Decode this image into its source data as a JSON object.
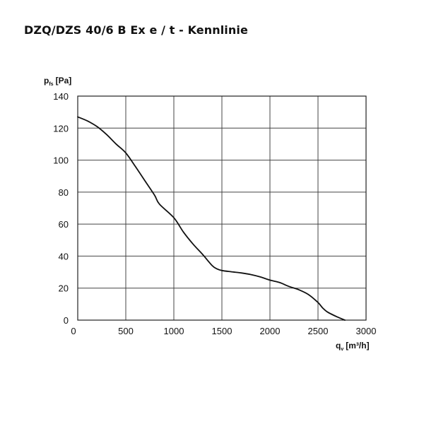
{
  "page": {
    "title": "DZQ/DZS 40/6 B Ex e / t - Kennlinie"
  },
  "chart_data": {
    "type": "line",
    "title": "DZQ/DZS 40/6 B Ex e / t - Kennlinie",
    "ylabel": {
      "main": "p",
      "sub": "fs",
      "unit": "[Pa]"
    },
    "xlabel": {
      "main": "q",
      "sub": "v",
      "unit": "[m³/h]"
    },
    "xlim": [
      0,
      3000
    ],
    "ylim": [
      0,
      140
    ],
    "x_ticks": [
      0,
      500,
      1000,
      1500,
      2000,
      2500,
      3000
    ],
    "y_ticks": [
      0,
      20,
      40,
      60,
      80,
      100,
      120,
      140
    ],
    "x_tick_labels": [
      "0",
      "500",
      "1000",
      "1500",
      "2000",
      "2500",
      "3000"
    ],
    "y_tick_labels": [
      "0",
      "20",
      "40",
      "60",
      "80",
      "100",
      "120",
      "140"
    ],
    "grid": true,
    "series": [
      {
        "x": [
          0,
          100,
          200,
          300,
          400,
          500,
          600,
          700,
          800,
          850,
          1000,
          1100,
          1200,
          1300,
          1400,
          1450,
          1500,
          1600,
          1700,
          1800,
          1900,
          2000,
          2100,
          2200,
          2300,
          2400,
          2500,
          2550,
          2600,
          2700,
          2780
        ],
        "y": [
          127,
          124.5,
          121,
          116,
          110,
          104.5,
          96,
          87,
          78,
          72.5,
          64,
          55,
          47.5,
          41,
          34,
          32,
          31,
          30.2,
          29.5,
          28.5,
          27,
          25,
          23.5,
          21,
          19,
          16,
          11,
          7.5,
          5,
          2,
          0
        ]
      }
    ]
  }
}
